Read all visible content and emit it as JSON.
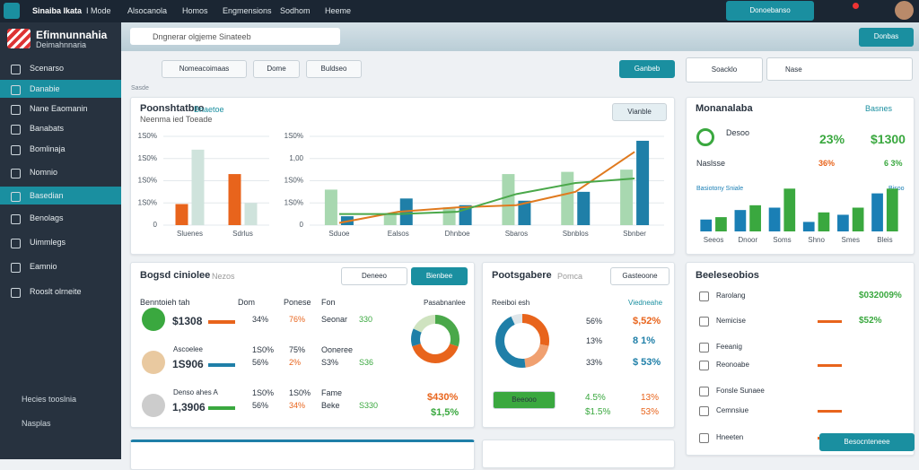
{
  "topbar": {
    "brand": "Sinaiba Ikata",
    "menu": [
      "I Mode",
      "Alsocanola",
      "Homos",
      "Engmensions",
      "Sodhom",
      "Heeme"
    ],
    "button": "Donoebanso"
  },
  "sidebar": {
    "title": "Efimnunnahia",
    "subtitle": "Deimahnnaria",
    "items": [
      "Scenarso",
      "Danabie",
      "Nane Eaomanin",
      "Banabats",
      "Bomlinaja",
      "Nomnio",
      "Basedian",
      "Benolags",
      "Uimmlegs",
      "Eamnio",
      "Rooslt olrneite"
    ],
    "footer": [
      "Hecies tooslnia",
      "Nasplas"
    ]
  },
  "header": {
    "search": "Dngnerar olgjeme Sinateeb",
    "button": "Donbas"
  },
  "toolbar": {
    "buttons": [
      "Nomeacoimaas",
      "Dome",
      "Buldseo"
    ],
    "label": "Sasde",
    "right": [
      "Ganbeb",
      "Soacklo",
      "Nase"
    ]
  },
  "overview": {
    "title": "Poonshtatbro",
    "link": "Bnaetoe",
    "subtitle": "Neenma ied Toeade",
    "dropdown": "Vianble"
  },
  "summary": {
    "title": "Monanalaba",
    "link": "Basnes",
    "legend": [
      "Desoo",
      "Naslsse"
    ],
    "stats": [
      "23%",
      "$1300",
      "36%",
      "6 3%"
    ],
    "chart_title": "Basiotony Sniale",
    "chart_link": "Bisoo"
  },
  "table_card": {
    "title": "Bogsd ciniolee",
    "tag": "Nezos",
    "dropdown": "Deneeo",
    "button": "Bienbee",
    "columns": [
      "Benntoieh tah",
      "Dom",
      "Ponese",
      "Fon"
    ],
    "rows": [
      {
        "cells": [
          "$1308",
          "34%",
          "76%",
          "Seonar",
          "330"
        ]
      },
      {
        "label": "Ascoelee",
        "extra": [
          "1S0%",
          "75%",
          "Ooneree"
        ],
        "cells": [
          "1S906",
          "56%",
          "2%",
          "S3%",
          "S36"
        ]
      },
      {
        "label": "Denso ahes A",
        "extra": [
          "1S0%",
          "1S0%",
          "Fame"
        ],
        "cells": [
          "1,3906",
          "56%",
          "34%",
          "Beke",
          "S330"
        ]
      }
    ],
    "donut_label": "Pasabnanlee",
    "donut_values": [
      "$430%",
      "$1,5%"
    ]
  },
  "mid_card": {
    "title": "Pootsgabere",
    "tag": "Pomca",
    "button": "Gasteoone",
    "left_label": "Reeiboi esh",
    "right_label": "Viedneahe",
    "rows": [
      [
        "56%",
        "$,52%"
      ],
      [
        "13%",
        "8 1%"
      ],
      [
        "33%",
        "$ 53%"
      ]
    ],
    "action": "Beeooo",
    "bottom": [
      [
        "4.5%",
        "13%"
      ],
      [
        "$1.5%",
        "53%"
      ]
    ]
  },
  "right_card": {
    "title": "Beeleseobios",
    "items": [
      [
        "Rarolang",
        "$032009%"
      ],
      [
        "Nemicise",
        "$52%"
      ],
      [
        "Feeanig"
      ],
      [
        "Reonoabe"
      ],
      [
        "Fonsle Sunaee"
      ],
      [
        "Cemnsiue"
      ],
      [
        "Hneeten"
      ]
    ],
    "button": "Besocnteneee"
  },
  "chart_data": [
    {
      "type": "bar",
      "categories": [
        "Sluenes",
        "Sdrlus"
      ],
      "ylim": [
        0,
        4
      ],
      "yticks": [
        0,
        {
          "value": 1,
          "label": "1S0%"
        },
        {
          "value": 2,
          "label": "1S0%"
        },
        {
          "value": 3,
          "label": "1S0%"
        },
        {
          "value": 4,
          "label": "1S0%"
        }
      ],
      "grid": true,
      "series": [
        {
          "color": "#e8641c",
          "values": [
            0.95,
            2.3
          ]
        },
        {
          "color": "#cfe3dc",
          "values": [
            3.4,
            1.0
          ]
        }
      ]
    },
    {
      "type": "bar",
      "categories": [
        "Sduoe",
        "Ealsos",
        "Dhnboe",
        "Sbaros",
        "Sbnblos",
        "Sbnber"
      ],
      "ylim": [
        0,
        4
      ],
      "yticks": [
        0,
        {
          "value": 1,
          "label": "1S0%"
        },
        {
          "value": 2,
          "label": "1S0%"
        },
        {
          "value": 3,
          "label": "1,00"
        },
        {
          "value": 4,
          "label": "1S0%"
        }
      ],
      "grid": true,
      "series": [
        {
          "color": "#a8d8b0",
          "values": [
            1.6,
            0.5,
            0.8,
            2.3,
            2.4,
            2.5
          ]
        },
        {
          "color": "#1f7fa8",
          "values": [
            0.4,
            1.2,
            0.9,
            1.1,
            1.5,
            3.8
          ]
        },
        {
          "type": "line",
          "color": "#e07a1f",
          "values": [
            0.1,
            0.6,
            0.8,
            0.9,
            1.5,
            3.3
          ]
        },
        {
          "type": "line",
          "color": "#4aa84a",
          "values": [
            0.5,
            0.5,
            0.6,
            1.4,
            1.9,
            2.1
          ]
        }
      ]
    },
    {
      "type": "bar",
      "categories": [
        "Seeos",
        "Dnoor",
        "Soms",
        "Shno",
        "Smes",
        "Bleis"
      ],
      "ylim": [
        0,
        2
      ],
      "grid": false,
      "series": [
        {
          "color": "#1a7fb5",
          "values": [
            0.5,
            0.9,
            1.0,
            0.4,
            0.7,
            1.6
          ]
        },
        {
          "color": "#3aa83f",
          "values": [
            0.6,
            1.1,
            1.8,
            0.8,
            1.0,
            1.8
          ]
        }
      ]
    },
    {
      "type": "pie",
      "values": [
        30,
        40,
        12,
        18
      ],
      "colors": [
        "#4aa84a",
        "#e8641c",
        "#1f7fa8",
        "#cfe3c0"
      ]
    },
    {
      "type": "pie",
      "values": [
        28,
        20,
        45,
        7
      ],
      "colors": [
        "#e8641c",
        "#f0a070",
        "#1f7fa8",
        "#dfe6ea"
      ]
    }
  ]
}
